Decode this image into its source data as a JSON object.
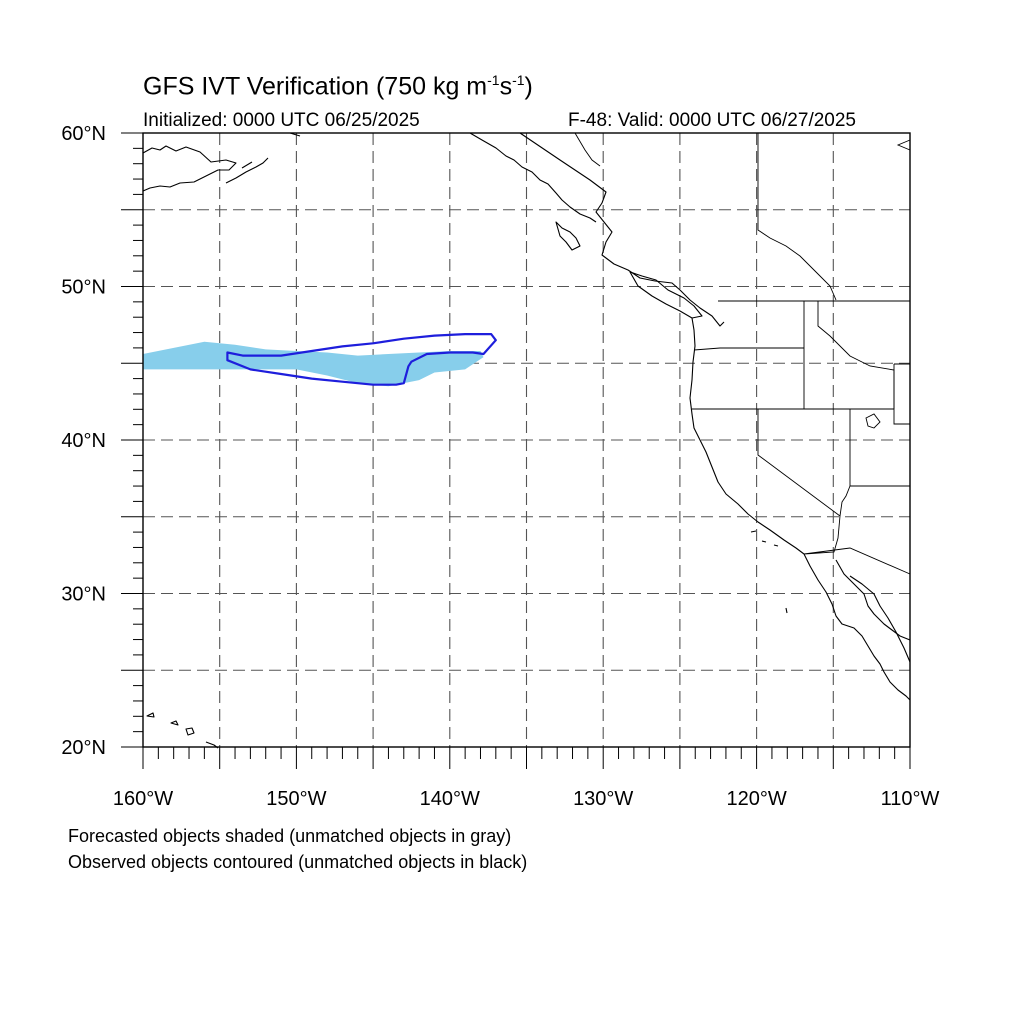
{
  "title": {
    "main": "GFS IVT Verification (750 kg m",
    "exp1": "-1",
    "mid": "s",
    "exp2": "-1",
    "close": ")"
  },
  "initialized": "Initialized: 0000 UTC 06/25/2025",
  "valid": "F-48: Valid: 0000 UTC 06/27/2025",
  "notes": {
    "forecast": "Forecasted objects shaded (unmatched objects in gray)",
    "observed": "Observed objects contoured (unmatched objects in black)"
  },
  "map": {
    "lon_range": [
      -160,
      -110
    ],
    "lat_range": [
      20,
      60
    ],
    "grid": "dashed every 5 degrees",
    "lon_labels": [
      "160°W",
      "150°W",
      "140°W",
      "130°W",
      "120°W",
      "110°W"
    ],
    "lat_labels": [
      "60°N",
      "50°N",
      "40°N",
      "30°N",
      "20°N"
    ]
  },
  "colors": {
    "forecast_fill": "#87ceeb",
    "observed_contour": "#1e1edc",
    "coastline": "#000000",
    "grid": "#555555"
  },
  "objects": {
    "forecast_matched": {
      "label": "Forecast IVT object (matched)",
      "lonlat": [
        [
          -160,
          45.6
        ],
        [
          -158,
          46
        ],
        [
          -156,
          46.4
        ],
        [
          -154,
          46.2
        ],
        [
          -152,
          45.9
        ],
        [
          -150,
          45.8
        ],
        [
          -148,
          45.7
        ],
        [
          -146,
          45.5
        ],
        [
          -144,
          45.6
        ],
        [
          -142,
          45.7
        ],
        [
          -140,
          45.8
        ],
        [
          -138,
          45.8
        ],
        [
          -137.8,
          45.4
        ],
        [
          -139,
          44.6
        ],
        [
          -141,
          44.4
        ],
        [
          -142,
          43.9
        ],
        [
          -144,
          43.5
        ],
        [
          -146,
          43.7
        ],
        [
          -148,
          44.2
        ],
        [
          -150,
          44.6
        ],
        [
          -152,
          44.6
        ],
        [
          -154,
          44.6
        ],
        [
          -156,
          44.6
        ],
        [
          -158,
          44.6
        ],
        [
          -160,
          44.6
        ]
      ]
    },
    "observed_matched": {
      "label": "Observed IVT object (matched)",
      "lonlat": [
        [
          -154.5,
          45.7
        ],
        [
          -153.5,
          45.5
        ],
        [
          -151,
          45.5
        ],
        [
          -149,
          45.8
        ],
        [
          -147,
          46.1
        ],
        [
          -145,
          46.3
        ],
        [
          -143,
          46.6
        ],
        [
          -141,
          46.8
        ],
        [
          -139,
          46.9
        ],
        [
          -137.3,
          46.9
        ],
        [
          -137,
          46.5
        ],
        [
          -137.8,
          45.6
        ],
        [
          -138.5,
          45.7
        ],
        [
          -140,
          45.7
        ],
        [
          -141.5,
          45.6
        ],
        [
          -142.5,
          45.1
        ],
        [
          -142.7,
          44.8
        ],
        [
          -143,
          43.7
        ],
        [
          -143.5,
          43.6
        ],
        [
          -145,
          43.6
        ],
        [
          -147,
          43.8
        ],
        [
          -149,
          44
        ],
        [
          -151,
          44.3
        ],
        [
          -153,
          44.6
        ],
        [
          -154.5,
          45.2
        ]
      ]
    }
  }
}
